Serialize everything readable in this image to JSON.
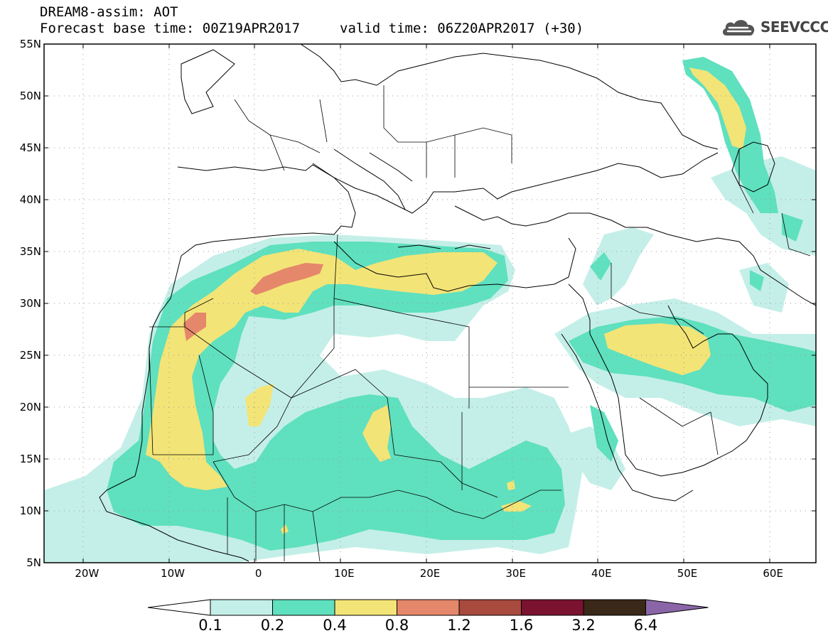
{
  "header": {
    "line1": "DREAM8-assim: AOT",
    "line2": "Forecast base time: 00Z19APR2017",
    "line3": "valid time: 06Z20APR2017 (+30)"
  },
  "logo": {
    "text": "SEEVCCC",
    "icon": "cloud-icon"
  },
  "map": {
    "lat_labels": [
      "55N",
      "50N",
      "45N",
      "40N",
      "35N",
      "30N",
      "25N",
      "20N",
      "15N",
      "10N",
      "5N"
    ],
    "lon_labels": [
      "20W",
      "10W",
      "0",
      "10E",
      "20E",
      "30E",
      "40E",
      "50E",
      "60E"
    ],
    "lat_range": [
      5,
      55
    ],
    "lon_range": [
      -25,
      65
    ],
    "grid": "dotted"
  },
  "colorbar": {
    "ticks": [
      "0.1",
      "0.2",
      "0.4",
      "0.8",
      "1.2",
      "1.6",
      "3.2",
      "6.4"
    ],
    "colors": [
      "#ffffff",
      "#c4efe8",
      "#5fe0bf",
      "#f3e477",
      "#e5876a",
      "#a84a3e",
      "#7a1230",
      "#3a2818",
      "#8a66a8"
    ]
  }
}
